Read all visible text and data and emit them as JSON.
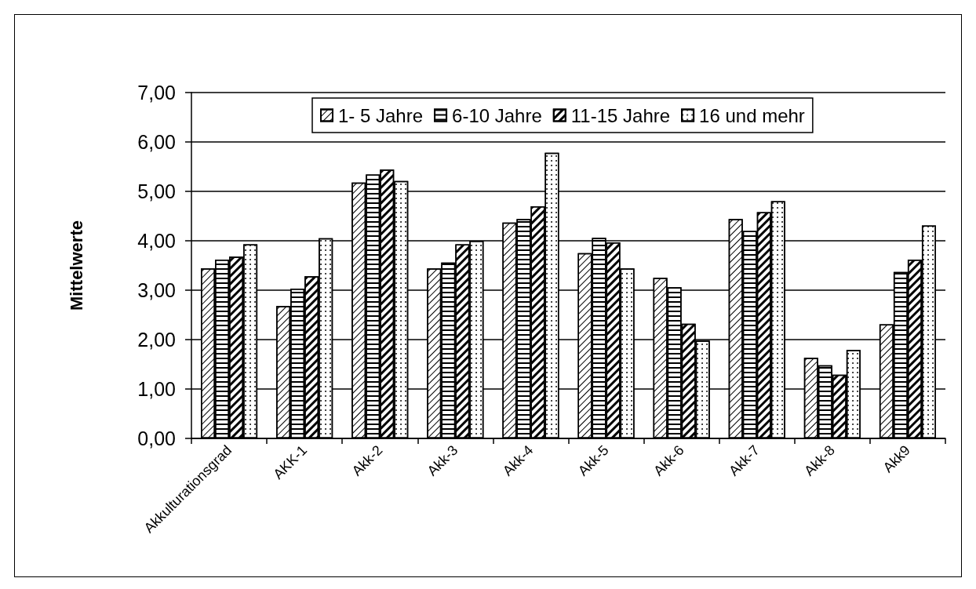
{
  "chart_data": {
    "type": "bar",
    "ylabel": "Mittelwerte",
    "categories": [
      "Akkulturationsgrad",
      "AKK-1",
      "Akk-2",
      "Akk-3",
      "Akk-4",
      "Akk-5",
      "Akk-6",
      "Akk-7",
      "Akk-8",
      "Akk9"
    ],
    "series": [
      {
        "name": "1- 5 Jahre",
        "color": "#ffffff",
        "values": [
          3.44,
          2.68,
          5.18,
          3.44,
          4.37,
          3.75,
          3.25,
          4.44,
          1.63,
          2.31
        ]
      },
      {
        "name": "6-10 Jahre",
        "color": "#ffffff",
        "values": [
          3.62,
          3.03,
          5.34,
          3.56,
          4.44,
          4.06,
          3.06,
          4.2,
          1.48,
          3.37
        ]
      },
      {
        "name": "11-15 Jahre",
        "color": "#ffffff",
        "values": [
          3.68,
          3.28,
          5.44,
          3.93,
          4.7,
          3.97,
          2.32,
          4.58,
          1.29,
          3.62
        ]
      },
      {
        "name": "16 und mehr",
        "color": "#ffffff",
        "values": [
          3.93,
          4.05,
          5.21,
          4.0,
          5.78,
          3.44,
          1.98,
          4.8,
          1.79,
          4.31
        ]
      }
    ],
    "ylim": [
      0,
      7
    ],
    "yticks": [
      {
        "value": 0,
        "label": "0,00"
      },
      {
        "value": 1,
        "label": "1,00"
      },
      {
        "value": 2,
        "label": "2,00"
      },
      {
        "value": 3,
        "label": "3,00"
      },
      {
        "value": 4,
        "label": "4,00"
      },
      {
        "value": 5,
        "label": "5,00"
      },
      {
        "value": 6,
        "label": "6,00"
      },
      {
        "value": 7,
        "label": "7,00"
      }
    ],
    "grid": "y",
    "legend": "top"
  }
}
